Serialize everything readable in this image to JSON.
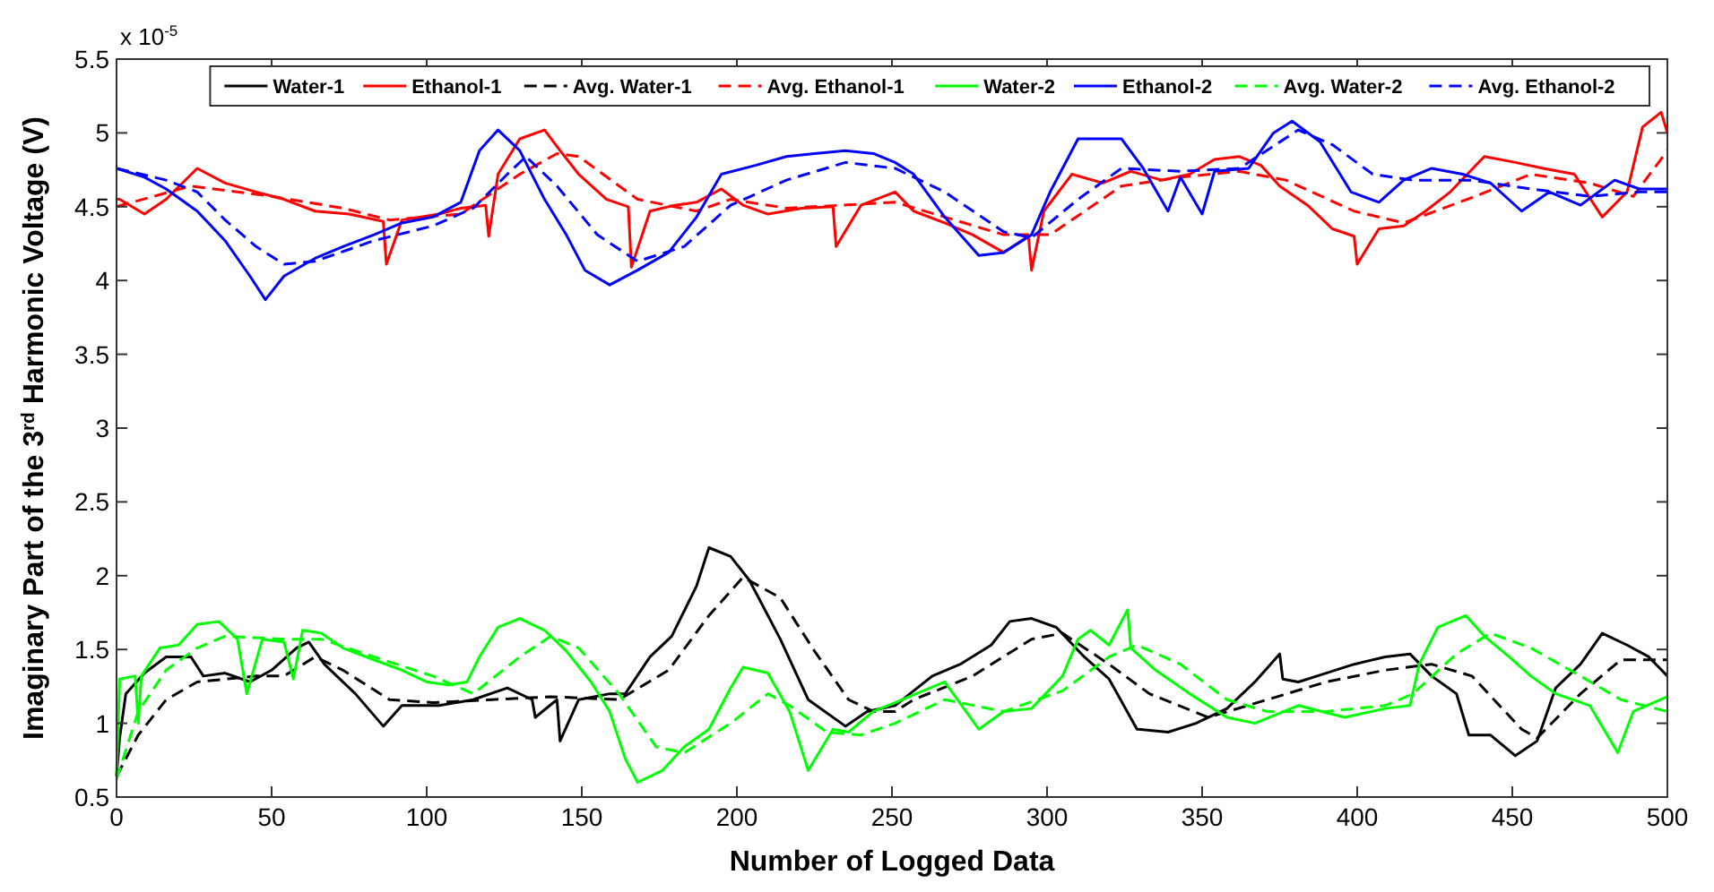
{
  "chart_data": {
    "type": "line",
    "xlabel": "Number of Logged Data",
    "ylabel": "Imaginary Part of the 3$^{rd}$ Harmonic Voltage (V)",
    "annotations": [
      "x 10$^{-5}$"
    ],
    "xlim": [
      0,
      500
    ],
    "xticks": [
      0,
      50,
      100,
      150,
      200,
      250,
      300,
      350,
      400,
      450,
      500
    ],
    "ylim": [
      0.5,
      5.5
    ],
    "yticks": [
      0.5,
      1,
      1.5,
      2,
      2.5,
      3,
      3.5,
      4,
      4.5,
      5,
      5.5
    ],
    "grid": false,
    "legend": "top",
    "series": [
      {
        "name": "Water-1",
        "color": "#000000",
        "line_style": "solid",
        "x": [
          0,
          1,
          3,
          9,
          16,
          24,
          28,
          35,
          43,
          50,
          58,
          62,
          67,
          77,
          86,
          92,
          104,
          115,
          126,
          134,
          135,
          142,
          143,
          149,
          159,
          164,
          172,
          179,
          187,
          191,
          198,
          204,
          214,
          223,
          235,
          242,
          251,
          263,
          272,
          282,
          288,
          295,
          303,
          312,
          320,
          329,
          339,
          348,
          358,
          367,
          375,
          376,
          381,
          390,
          399,
          409,
          417,
          424,
          432,
          436,
          443,
          451,
          458,
          464,
          472,
          479,
          487,
          494,
          500
        ],
        "values": [
          0.64,
          0.9,
          1.2,
          1.34,
          1.45,
          1.45,
          1.32,
          1.34,
          1.28,
          1.36,
          1.51,
          1.55,
          1.4,
          1.2,
          0.98,
          1.12,
          1.12,
          1.16,
          1.24,
          1.16,
          1.04,
          1.16,
          0.88,
          1.16,
          1.2,
          1.2,
          1.45,
          1.59,
          1.93,
          2.19,
          2.13,
          1.97,
          1.57,
          1.16,
          0.98,
          1.08,
          1.12,
          1.32,
          1.4,
          1.53,
          1.69,
          1.71,
          1.65,
          1.45,
          1.3,
          0.96,
          0.94,
          1.0,
          1.1,
          1.28,
          1.47,
          1.3,
          1.28,
          1.34,
          1.4,
          1.45,
          1.47,
          1.32,
          1.2,
          0.92,
          0.92,
          0.78,
          0.88,
          1.24,
          1.4,
          1.61,
          1.53,
          1.45,
          1.32
        ]
      },
      {
        "name": "Ethanol-1",
        "color": "#ff0000",
        "line_style": "solid",
        "x": [
          0,
          1,
          9,
          16,
          26,
          35,
          45,
          54,
          64,
          75,
          86,
          87,
          92,
          104,
          111,
          119,
          120,
          123,
          130,
          138,
          143,
          149,
          158,
          165,
          166,
          172,
          180,
          187,
          195,
          202,
          210,
          221,
          231,
          232,
          240,
          251,
          257,
          267,
          276,
          286,
          294,
          295,
          299,
          308,
          318,
          327,
          337,
          346,
          354,
          362,
          369,
          375,
          384,
          392,
          399,
          400,
          407,
          415,
          422,
          430,
          441,
          451,
          460,
          470,
          479,
          487,
          492,
          498,
          500
        ],
        "values": [
          4.55,
          4.55,
          4.45,
          4.55,
          4.76,
          4.66,
          4.6,
          4.55,
          4.47,
          4.45,
          4.4,
          4.11,
          4.41,
          4.45,
          4.49,
          4.51,
          4.3,
          4.72,
          4.96,
          5.02,
          4.88,
          4.72,
          4.55,
          4.5,
          4.09,
          4.47,
          4.51,
          4.53,
          4.62,
          4.51,
          4.45,
          4.49,
          4.5,
          4.23,
          4.51,
          4.6,
          4.47,
          4.39,
          4.31,
          4.19,
          4.3,
          4.07,
          4.47,
          4.72,
          4.66,
          4.74,
          4.68,
          4.72,
          4.82,
          4.84,
          4.78,
          4.64,
          4.51,
          4.35,
          4.3,
          4.11,
          4.35,
          4.37,
          4.47,
          4.6,
          4.84,
          4.8,
          4.76,
          4.72,
          4.43,
          4.6,
          5.04,
          5.14,
          5.0
        ]
      },
      {
        "name": "Avg. Water-1",
        "color": "#000000",
        "line_style": "dashed",
        "x": [
          0,
          7,
          16,
          26,
          45,
          54,
          64,
          73,
          88,
          102,
          121,
          140,
          162,
          178,
          191,
          202,
          214,
          225,
          236,
          244,
          251,
          257,
          276,
          295,
          305,
          320,
          333,
          352,
          371,
          390,
          409,
          424,
          437,
          453,
          458,
          472,
          485,
          500
        ],
        "values": [
          0.64,
          0.92,
          1.16,
          1.28,
          1.32,
          1.32,
          1.45,
          1.36,
          1.16,
          1.14,
          1.16,
          1.18,
          1.16,
          1.36,
          1.73,
          1.99,
          1.85,
          1.49,
          1.16,
          1.08,
          1.08,
          1.16,
          1.32,
          1.57,
          1.61,
          1.4,
          1.2,
          1.04,
          1.16,
          1.28,
          1.36,
          1.4,
          1.32,
          0.96,
          0.9,
          1.2,
          1.43,
          1.43
        ]
      },
      {
        "name": "Avg. Ethanol-1",
        "color": "#ff0000",
        "line_style": "dashed",
        "x": [
          0,
          24,
          50,
          73,
          88,
          111,
          130,
          142,
          149,
          168,
          187,
          198,
          216,
          251,
          267,
          286,
          301,
          324,
          343,
          362,
          377,
          399,
          415,
          438,
          456,
          475,
          489,
          500
        ],
        "values": [
          4.5,
          4.64,
          4.57,
          4.49,
          4.41,
          4.45,
          4.72,
          4.86,
          4.84,
          4.55,
          4.47,
          4.55,
          4.49,
          4.53,
          4.43,
          4.31,
          4.31,
          4.64,
          4.7,
          4.74,
          4.68,
          4.47,
          4.39,
          4.57,
          4.72,
          4.66,
          4.57,
          4.88
        ]
      },
      {
        "name": "Water-2",
        "color": "#00ff00",
        "line_style": "solid",
        "x": [
          0,
          1,
          6,
          7,
          8,
          14,
          20,
          26,
          33,
          39,
          42,
          47,
          54,
          57,
          60,
          66,
          73,
          83,
          92,
          100,
          107,
          113,
          117,
          123,
          130,
          138,
          145,
          153,
          159,
          164,
          168,
          176,
          183,
          191,
          198,
          202,
          210,
          217,
          223,
          231,
          236,
          244,
          251,
          267,
          278,
          286,
          295,
          305,
          310,
          314,
          320,
          326,
          327,
          335,
          346,
          358,
          367,
          381,
          396,
          409,
          417,
          420,
          426,
          435,
          441,
          449,
          456,
          464,
          475,
          484,
          489,
          500
        ],
        "values": [
          0.65,
          1.3,
          1.32,
          1.0,
          1.32,
          1.51,
          1.53,
          1.67,
          1.69,
          1.57,
          1.2,
          1.57,
          1.55,
          1.3,
          1.63,
          1.61,
          1.51,
          1.43,
          1.36,
          1.28,
          1.26,
          1.28,
          1.45,
          1.65,
          1.71,
          1.63,
          1.49,
          1.28,
          1.08,
          0.76,
          0.6,
          0.68,
          0.84,
          0.96,
          1.24,
          1.38,
          1.34,
          1.08,
          0.68,
          0.96,
          0.94,
          1.08,
          1.14,
          1.28,
          0.96,
          1.08,
          1.1,
          1.32,
          1.57,
          1.63,
          1.53,
          1.77,
          1.51,
          1.36,
          1.2,
          1.04,
          1.0,
          1.12,
          1.04,
          1.1,
          1.12,
          1.4,
          1.65,
          1.73,
          1.59,
          1.45,
          1.32,
          1.2,
          1.12,
          0.8,
          1.08,
          1.18
        ]
      },
      {
        "name": "Ethanol-2",
        "color": "#0000ff",
        "line_style": "solid",
        "x": [
          0,
          9,
          16,
          26,
          35,
          43,
          48,
          54,
          64,
          73,
          83,
          92,
          102,
          111,
          117,
          123,
          130,
          138,
          145,
          151,
          159,
          168,
          178,
          187,
          195,
          206,
          216,
          225,
          235,
          244,
          251,
          257,
          267,
          278,
          286,
          295,
          301,
          310,
          324,
          331,
          339,
          343,
          350,
          354,
          365,
          373,
          379,
          388,
          398,
          407,
          415,
          424,
          434,
          443,
          453,
          462,
          472,
          483,
          491,
          500
        ],
        "values": [
          4.76,
          4.7,
          4.62,
          4.47,
          4.27,
          4.03,
          3.87,
          4.03,
          4.15,
          4.23,
          4.31,
          4.39,
          4.43,
          4.53,
          4.88,
          5.02,
          4.88,
          4.55,
          4.31,
          4.07,
          3.97,
          4.07,
          4.19,
          4.43,
          4.72,
          4.78,
          4.84,
          4.86,
          4.88,
          4.86,
          4.8,
          4.72,
          4.43,
          4.17,
          4.19,
          4.31,
          4.6,
          4.96,
          4.96,
          4.76,
          4.47,
          4.7,
          4.45,
          4.74,
          4.76,
          5.0,
          5.08,
          4.94,
          4.6,
          4.53,
          4.68,
          4.76,
          4.72,
          4.66,
          4.47,
          4.6,
          4.51,
          4.68,
          4.62,
          4.62
        ]
      },
      {
        "name": "Avg. Water-2",
        "color": "#00ff00",
        "line_style": "dashed",
        "x": [
          0,
          7,
          16,
          26,
          35,
          54,
          66,
          83,
          102,
          115,
          130,
          140,
          149,
          162,
          174,
          183,
          198,
          210,
          217,
          229,
          240,
          251,
          267,
          286,
          305,
          320,
          329,
          343,
          358,
          371,
          390,
          409,
          418,
          432,
          443,
          456,
          472,
          485,
          500
        ],
        "values": [
          0.62,
          1.08,
          1.36,
          1.51,
          1.59,
          1.57,
          1.57,
          1.45,
          1.32,
          1.2,
          1.45,
          1.59,
          1.51,
          1.2,
          0.84,
          0.8,
          1.0,
          1.2,
          1.12,
          0.94,
          0.92,
          1.0,
          1.16,
          1.08,
          1.22,
          1.45,
          1.53,
          1.4,
          1.16,
          1.08,
          1.08,
          1.12,
          1.2,
          1.47,
          1.61,
          1.51,
          1.32,
          1.16,
          1.08
        ]
      },
      {
        "name": "Avg. Ethanol-2",
        "color": "#0000ff",
        "line_style": "dashed",
        "x": [
          0,
          16,
          26,
          35,
          45,
          54,
          64,
          83,
          102,
          115,
          126,
          132,
          142,
          155,
          168,
          183,
          198,
          216,
          235,
          251,
          267,
          286,
          295,
          310,
          324,
          343,
          362,
          381,
          392,
          405,
          418,
          437,
          456,
          475,
          491,
          500
        ],
        "values": [
          4.76,
          4.68,
          4.6,
          4.41,
          4.23,
          4.11,
          4.13,
          4.27,
          4.37,
          4.49,
          4.72,
          4.84,
          4.64,
          4.31,
          4.13,
          4.23,
          4.51,
          4.68,
          4.8,
          4.76,
          4.6,
          4.33,
          4.29,
          4.55,
          4.76,
          4.74,
          4.76,
          5.02,
          4.92,
          4.72,
          4.68,
          4.68,
          4.62,
          4.57,
          4.6,
          4.6
        ]
      }
    ]
  }
}
